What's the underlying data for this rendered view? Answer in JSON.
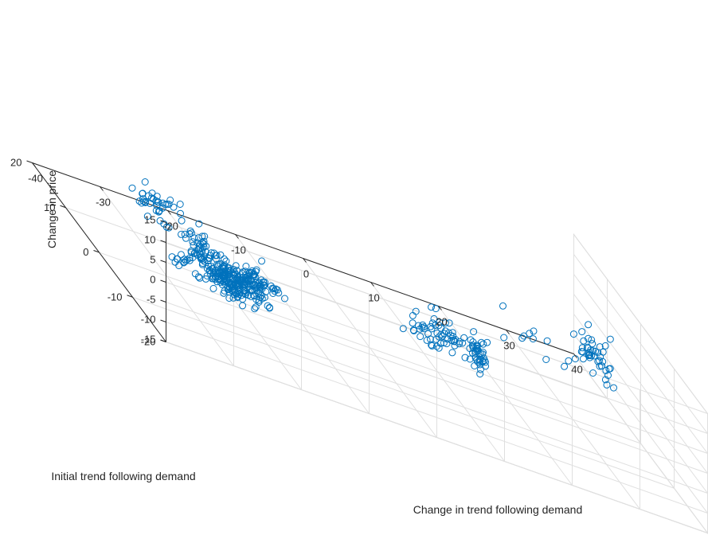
{
  "chart_data": {
    "type": "scatter",
    "title": "",
    "xlabel": "Change in trend following demand",
    "ylabel": "Initial trend following demand",
    "zlabel": "Change in price",
    "xlim": [
      -40,
      40
    ],
    "ylim": [
      -20,
      20
    ],
    "zlim": [
      -15,
      15
    ],
    "xticks": [
      "-40",
      "-30",
      "-20",
      "-10",
      "0",
      "10",
      "20",
      "30",
      "40"
    ],
    "yticks": [
      "-20",
      "-10",
      "0",
      "10",
      "20"
    ],
    "zticks": [
      "-15",
      "-10",
      "-5",
      "0",
      "5",
      "10",
      "15"
    ],
    "grid": true,
    "marker": "open-circle",
    "marker_color": "#0072BD",
    "clusters": [
      {
        "cx": -25,
        "cy": -10,
        "cz": -2,
        "sx": 2.5,
        "sy": 1.5,
        "sz": 1.6,
        "n": 230
      },
      {
        "cx": -29,
        "cy": -9,
        "cz": 1.5,
        "sx": 1.0,
        "sy": 0.6,
        "sz": 1.2,
        "n": 30
      },
      {
        "cx": -22,
        "cy": -12,
        "cz": 2,
        "sx": 1.2,
        "sy": 0.8,
        "sz": 1.2,
        "n": 30
      },
      {
        "cx": -31,
        "cy": -6,
        "cz": -4,
        "sx": 0.8,
        "sy": 0.6,
        "sz": 0.8,
        "n": 12
      },
      {
        "cx": 30,
        "cy": -6,
        "cz": 8,
        "sx": 1.5,
        "sy": 1.5,
        "sz": 2.8,
        "n": 45
      },
      {
        "cx": 22,
        "cy": -4,
        "cz": 4,
        "sx": 3.0,
        "sy": 1.5,
        "sz": 3.0,
        "n": 10
      },
      {
        "cx": 12,
        "cy": 3,
        "cz": -8,
        "sx": 2.5,
        "sy": 1.5,
        "sz": 2.0,
        "n": 65
      },
      {
        "cx": 17,
        "cy": 2,
        "cz": -9,
        "sx": 0.6,
        "sy": 0.6,
        "sz": 2.0,
        "n": 35
      },
      {
        "cx": -24,
        "cy": 15,
        "cz": -10,
        "sx": 2.0,
        "sy": 1.0,
        "sz": 2.8,
        "n": 40
      },
      {
        "cx": -20,
        "cy": 12,
        "cz": -12,
        "sx": 1.2,
        "sy": 0.6,
        "sz": 1.0,
        "n": 14
      }
    ],
    "seed": 7
  }
}
